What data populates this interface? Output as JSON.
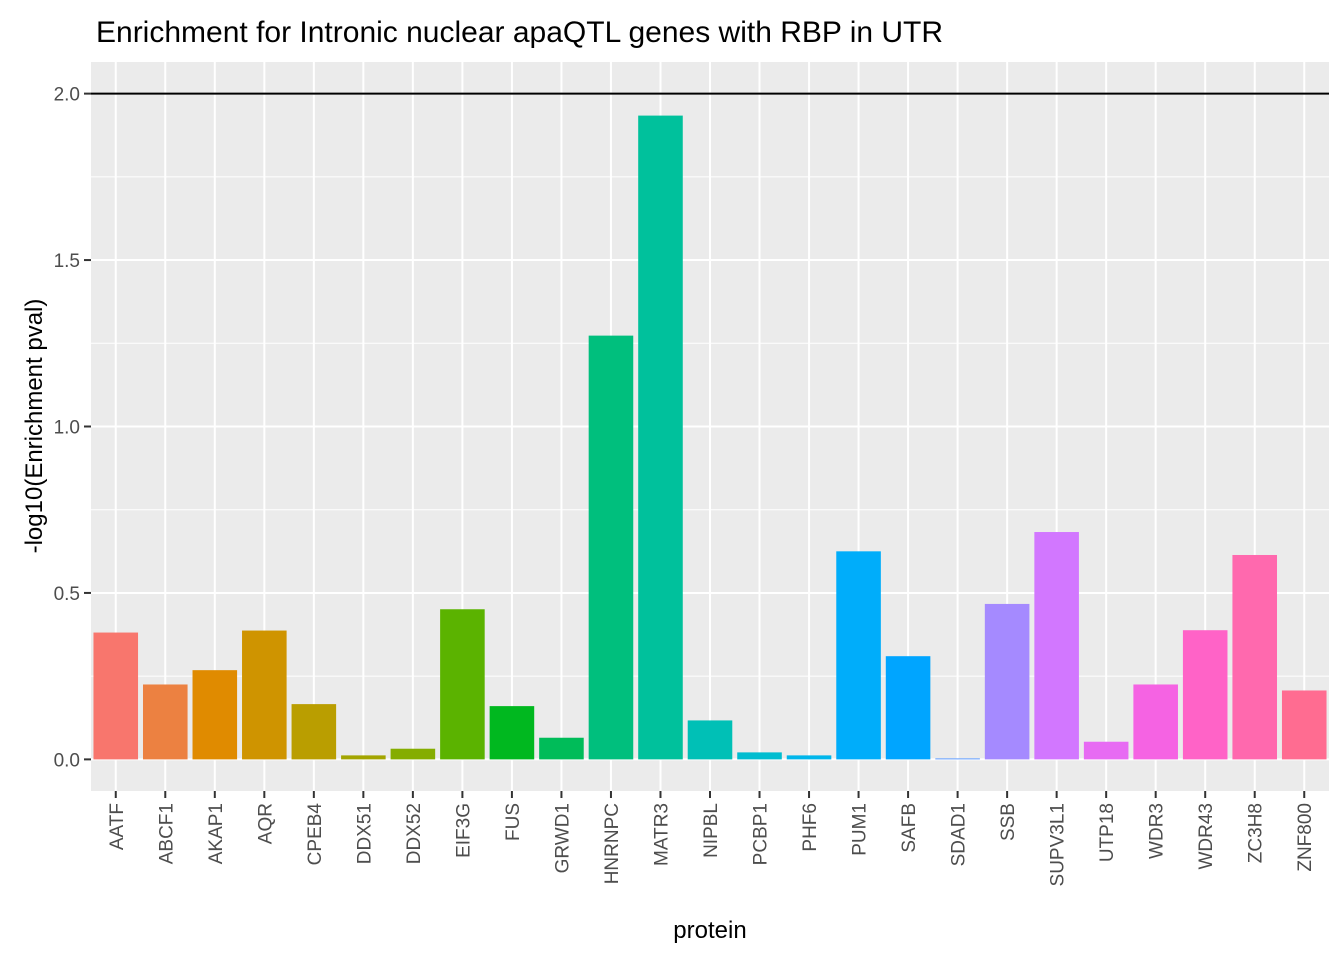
{
  "chart_data": {
    "type": "bar",
    "title": "Enrichment for Intronic nuclear apaQTL genes with RBP in UTR",
    "xlabel": "protein",
    "ylabel": "-log10(Enrichment pval)",
    "ylim": [
      -0.095,
      2.095
    ],
    "yticks": [
      0.0,
      0.5,
      1.0,
      1.5,
      2.0
    ],
    "ytick_labels": [
      "0.0",
      "0.5",
      "1.0",
      "1.5",
      "2.0"
    ],
    "reference_line": 2.0,
    "grid": true,
    "legend": "none",
    "categories": [
      "AATF",
      "ABCF1",
      "AKAP1",
      "AQR",
      "CPEB4",
      "DDX51",
      "DDX52",
      "EIF3G",
      "FUS",
      "GRWD1",
      "HNRNPC",
      "MATR3",
      "NIPBL",
      "PCBP1",
      "PHF6",
      "PUM1",
      "SAFB",
      "SDAD1",
      "SSB",
      "SUPV3L1",
      "UTP18",
      "WDR3",
      "WDR43",
      "ZC3H8",
      "ZNF800"
    ],
    "values": [
      0.381,
      0.225,
      0.268,
      0.387,
      0.166,
      0.012,
      0.032,
      0.451,
      0.16,
      0.065,
      1.273,
      1.934,
      0.117,
      0.021,
      0.012,
      0.625,
      0.31,
      0.003,
      0.467,
      0.683,
      0.053,
      0.225,
      0.388,
      0.614,
      0.207
    ],
    "colors": [
      "#F8766D",
      "#EC8141",
      "#E08B00",
      "#CF9400",
      "#BA9E00",
      "#A3A500",
      "#85AD00",
      "#5BB300",
      "#00B81F",
      "#00BC59",
      "#00BF7D",
      "#00C19C",
      "#00C0B6",
      "#00BDD0",
      "#00B6EB",
      "#00ADFA",
      "#00A5FF",
      "#619CFF",
      "#A58AFF",
      "#D277FF",
      "#E76BF3",
      "#F563E3",
      "#FF63C7",
      "#FF69AE",
      "#FF6C91"
    ]
  }
}
